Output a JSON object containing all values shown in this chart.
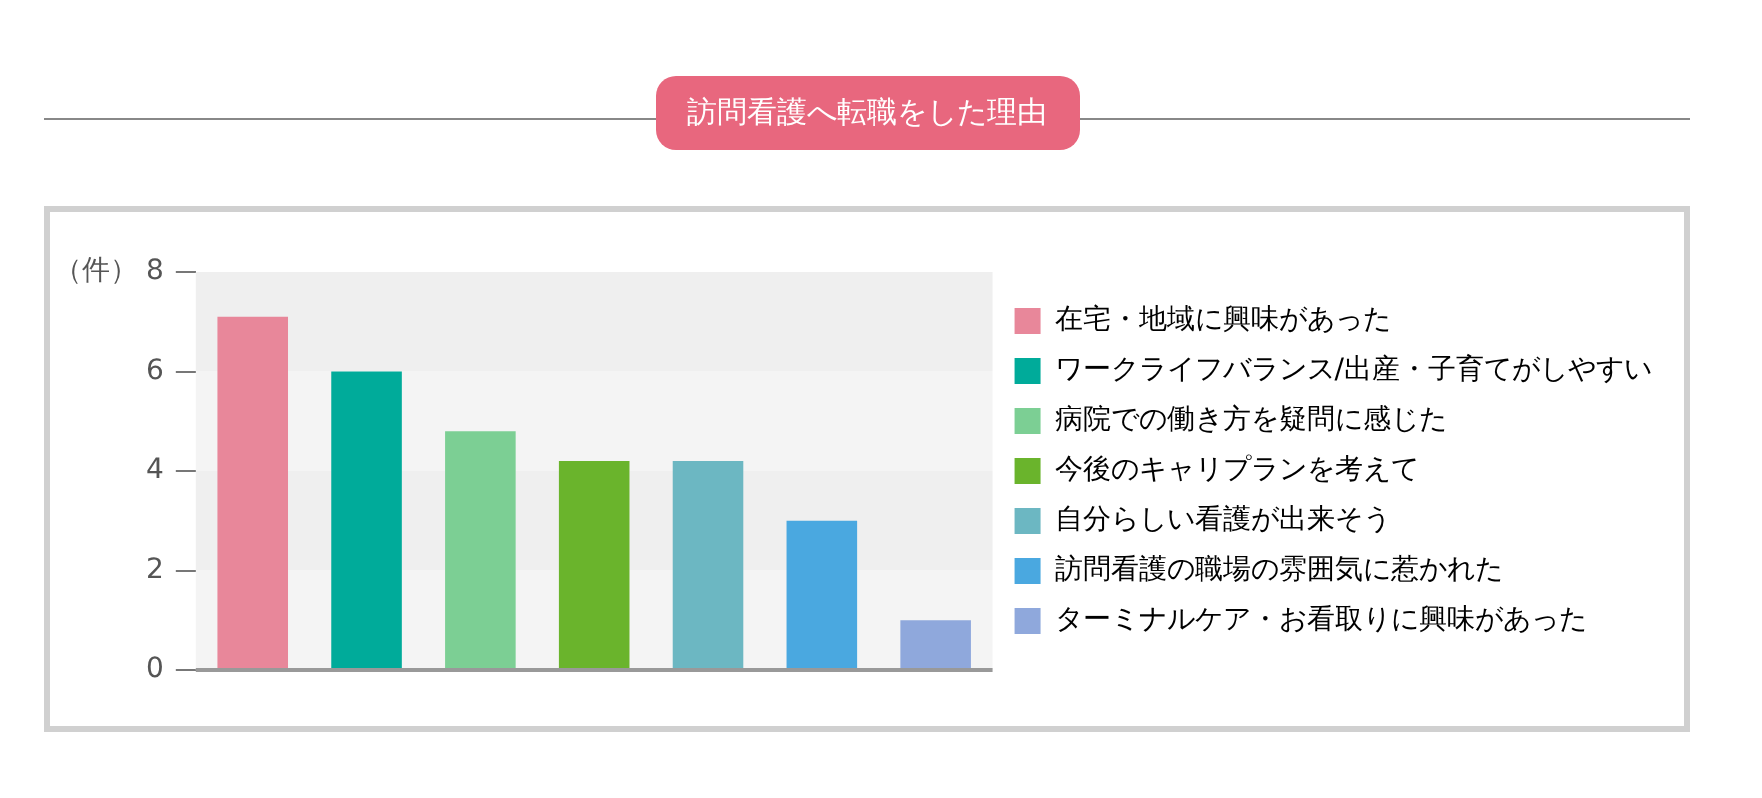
{
  "chart_data": {
    "type": "bar",
    "title": "訪問看護へ転職をした理由",
    "ylabel": "（件）",
    "categories": [
      null,
      null,
      null,
      null,
      null,
      null,
      null
    ],
    "series": [
      {
        "name": "在宅・地域に興味があった",
        "color": "#e8879a",
        "values": [
          7.1,
          null,
          null,
          null,
          null,
          null,
          null
        ]
      },
      {
        "name": "ワークライフバランス/出産・子育てがしやすい",
        "color": "#00ab9a",
        "values": [
          null,
          6,
          null,
          null,
          null,
          null,
          null
        ]
      },
      {
        "name": "病院での働き方を疑問に感じた",
        "color": "#7ccf94",
        "values": [
          null,
          null,
          4.8,
          null,
          null,
          null,
          null
        ]
      },
      {
        "name": "今後のキャリプランを考えて",
        "color": "#6ab42c",
        "values": [
          null,
          null,
          null,
          4.2,
          null,
          null,
          null
        ]
      },
      {
        "name": "自分らしい看護が出来そう",
        "color": "#6cb7c2",
        "values": [
          null,
          null,
          null,
          null,
          4.2,
          null,
          null
        ]
      },
      {
        "name": "訪問看護の職場の雰囲気に惹かれた",
        "color": "#4aa8e0",
        "values": [
          null,
          null,
          null,
          null,
          null,
          3,
          null
        ]
      },
      {
        "name": "ターミナルケア・お看取りに興味があった",
        "color": "#8fa8dc",
        "values": [
          null,
          null,
          null,
          null,
          null,
          null,
          1
        ]
      }
    ],
    "ylim": [
      0,
      8
    ],
    "yticks": [
      0,
      2,
      4,
      6,
      8
    ],
    "legend": "right",
    "tick_labels": "y"
  }
}
